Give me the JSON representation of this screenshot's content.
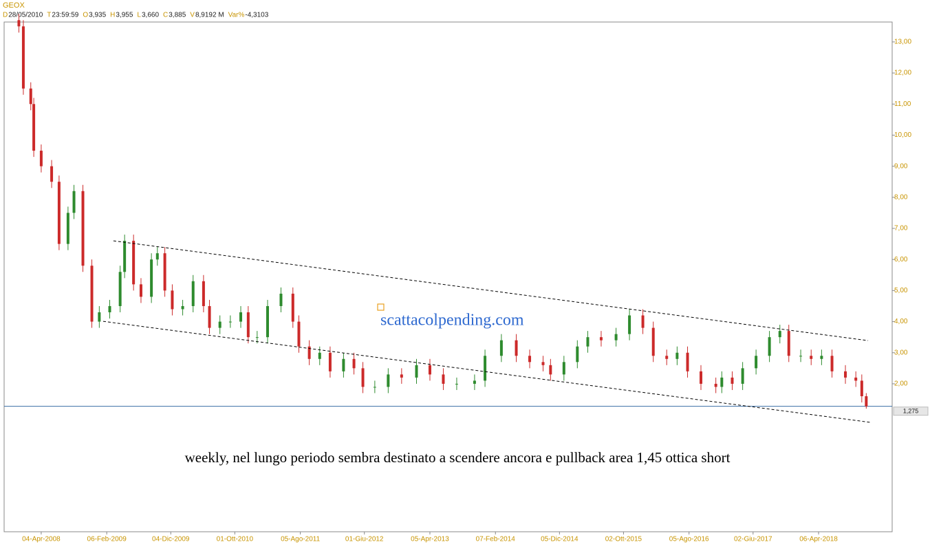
{
  "header": {
    "symbol": "GEOX",
    "fields": [
      {
        "key": "D",
        "value": "28/05/2010"
      },
      {
        "key": "T",
        "value": "23:59:59"
      },
      {
        "key": "O",
        "value": "3,935"
      },
      {
        "key": "H",
        "value": "3,955"
      },
      {
        "key": "L",
        "value": "3,660"
      },
      {
        "key": "C",
        "value": "3,885"
      },
      {
        "key": "V",
        "value": "8,9192 M"
      },
      {
        "key": "Var%",
        "value": "-4,3103"
      }
    ]
  },
  "chart_data": {
    "type": "candlestick",
    "up_color": "#2e8b2e",
    "down_color": "#cc2a2a",
    "x": [
      -15,
      -12,
      -7,
      -5,
      0,
      7,
      12,
      18,
      22,
      28,
      34,
      39,
      46,
      53,
      56,
      62,
      67,
      74,
      78,
      83,
      88,
      95,
      102,
      109,
      113,
      120,
      127,
      134,
      139,
      145,
      152,
      161,
      169,
      173,
      180,
      187,
      194,
      203,
      210,
      216,
      224,
      233,
      242,
      252,
      261,
      270,
      279,
      291,
      298,
      309,
      319,
      328,
      337,
      342,
      351,
      360,
      367,
      376,
      386,
      395,
      404,
      411,
      420,
      427,
      434,
      443,
      453,
      457,
      464,
      471,
      480,
      489,
      496,
      502,
      510,
      517,
      524,
      531,
      540,
      547,
      551,
      554
    ],
    "open": [
      13.7,
      13.5,
      11.5,
      11.0,
      9.5,
      9.0,
      8.5,
      6.5,
      7.5,
      8.2,
      5.8,
      4.0,
      4.3,
      4.5,
      5.6,
      6.6,
      5.2,
      4.8,
      6.0,
      6.2,
      5.0,
      4.4,
      4.5,
      5.3,
      4.5,
      3.8,
      4.0,
      4.0,
      4.3,
      3.5,
      3.5,
      4.5,
      4.9,
      4.0,
      3.2,
      2.8,
      3.0,
      2.4,
      2.8,
      2.5,
      1.9,
      1.9,
      2.3,
      2.2,
      2.6,
      2.3,
      2.0,
      2.0,
      2.1,
      2.9,
      3.4,
      2.9,
      2.7,
      2.6,
      2.3,
      2.7,
      3.2,
      3.5,
      3.4,
      3.6,
      4.2,
      3.8,
      2.9,
      2.8,
      3.0,
      2.4,
      2.0,
      1.9,
      2.2,
      2.0,
      2.5,
      2.9,
      3.5,
      3.7,
      2.9,
      2.9,
      2.8,
      2.9,
      2.4,
      2.2,
      2.1,
      1.6
    ],
    "high": [
      13.9,
      13.7,
      11.7,
      11.2,
      9.7,
      9.2,
      8.7,
      7.7,
      8.4,
      8.4,
      6.0,
      4.5,
      4.7,
      5.8,
      6.8,
      6.8,
      5.4,
      6.2,
      6.4,
      6.4,
      5.2,
      4.7,
      5.5,
      5.5,
      4.7,
      4.2,
      4.2,
      4.5,
      4.5,
      3.7,
      4.7,
      5.1,
      5.1,
      4.2,
      3.4,
      3.2,
      3.2,
      3.0,
      3.0,
      2.7,
      2.1,
      2.5,
      2.5,
      2.8,
      2.8,
      2.5,
      2.2,
      2.3,
      3.1,
      3.6,
      3.6,
      3.1,
      2.9,
      2.8,
      2.9,
      3.4,
      3.7,
      3.7,
      3.8,
      4.4,
      4.4,
      4.0,
      3.1,
      3.2,
      3.2,
      2.6,
      2.2,
      2.4,
      2.4,
      2.7,
      3.1,
      3.7,
      3.9,
      3.9,
      3.1,
      3.1,
      3.1,
      3.1,
      2.6,
      2.4,
      2.3,
      1.7
    ],
    "low": [
      13.3,
      11.3,
      10.8,
      9.3,
      8.8,
      8.3,
      6.3,
      6.3,
      7.3,
      5.6,
      3.8,
      3.8,
      4.1,
      4.3,
      5.4,
      5.0,
      4.6,
      4.6,
      5.8,
      4.8,
      4.2,
      4.2,
      4.3,
      4.3,
      3.6,
      3.6,
      3.8,
      3.8,
      3.3,
      3.3,
      3.3,
      4.3,
      3.8,
      3.0,
      2.6,
      2.6,
      2.2,
      2.2,
      2.3,
      1.7,
      1.7,
      1.7,
      2.0,
      2.0,
      2.1,
      1.8,
      1.8,
      1.8,
      1.9,
      2.7,
      2.7,
      2.5,
      2.4,
      2.1,
      2.1,
      2.5,
      3.0,
      3.2,
      3.2,
      3.4,
      3.6,
      2.7,
      2.6,
      2.6,
      2.2,
      1.8,
      1.7,
      1.7,
      1.8,
      1.8,
      2.3,
      2.7,
      3.3,
      2.7,
      2.7,
      2.6,
      2.6,
      2.2,
      2.0,
      1.9,
      1.4,
      1.2
    ],
    "close": [
      13.5,
      11.5,
      11.0,
      9.5,
      9.0,
      8.5,
      6.5,
      7.5,
      8.2,
      5.8,
      4.0,
      4.3,
      4.5,
      5.6,
      6.6,
      5.2,
      4.8,
      6.0,
      6.2,
      5.0,
      4.4,
      4.5,
      5.3,
      4.5,
      3.8,
      4.0,
      4.0,
      4.3,
      3.5,
      3.5,
      4.5,
      4.9,
      4.0,
      3.2,
      2.8,
      3.0,
      2.4,
      2.8,
      2.5,
      1.9,
      1.9,
      2.3,
      2.2,
      2.6,
      2.3,
      2.0,
      2.0,
      2.1,
      2.9,
      3.4,
      2.9,
      2.7,
      2.6,
      2.3,
      2.7,
      3.2,
      3.5,
      3.4,
      3.6,
      4.2,
      3.8,
      2.9,
      2.8,
      3.0,
      2.4,
      2.0,
      1.9,
      2.2,
      2.0,
      2.5,
      2.9,
      3.5,
      3.7,
      2.9,
      2.9,
      2.8,
      2.9,
      2.4,
      2.2,
      2.1,
      1.6,
      1.275
    ],
    "xlim": [
      -24.9,
      571.4
    ],
    "ylim": [
      -2.76,
      13.64
    ],
    "xticks": [
      {
        "value": 0,
        "label": "04-Apr-2008"
      },
      {
        "value": 44,
        "label": "06-Feb-2009"
      },
      {
        "value": 87,
        "label": "04-Dic-2009"
      },
      {
        "value": 130,
        "label": "01-Ott-2010"
      },
      {
        "value": 174,
        "label": "05-Ago-2011"
      },
      {
        "value": 217,
        "label": "01-Giu-2012"
      },
      {
        "value": 261,
        "label": "05-Apr-2013"
      },
      {
        "value": 305,
        "label": "07-Feb-2014"
      },
      {
        "value": 348,
        "label": "05-Dic-2014"
      },
      {
        "value": 391,
        "label": "02-Ott-2015"
      },
      {
        "value": 435,
        "label": "05-Ago-2016"
      },
      {
        "value": 478,
        "label": "02-Giu-2017"
      },
      {
        "value": 522,
        "label": "06-Apr-2018"
      }
    ],
    "yticks": [
      {
        "value": 2,
        "label": "2,00"
      },
      {
        "value": 3,
        "label": "3,00"
      },
      {
        "value": 4,
        "label": "4,00"
      },
      {
        "value": 5,
        "label": "5,00"
      },
      {
        "value": 6,
        "label": "6,00"
      },
      {
        "value": 7,
        "label": "7,00"
      },
      {
        "value": 8,
        "label": "8,00"
      },
      {
        "value": 9,
        "label": "9,00"
      },
      {
        "value": 10,
        "label": "10,00"
      },
      {
        "value": 11,
        "label": "11,00"
      },
      {
        "value": 12,
        "label": "12,00"
      },
      {
        "value": 13,
        "label": "13,00"
      }
    ],
    "price_line": {
      "value": 1.275,
      "label": "1,275",
      "color": "#3a6ea5"
    },
    "trend_lines": [
      {
        "x": [
          48.5,
          555.2
        ],
        "values": [
          6.6,
          3.39
        ]
      },
      {
        "x": [
          41.6,
          556.6
        ],
        "values": [
          4.01,
          0.76
        ]
      }
    ],
    "watermark": "scattacolpending.com",
    "annotation": "weekly, nel lungo periodo sembra destinato a scendere ancora e pullback area 1,45 ottica short"
  }
}
